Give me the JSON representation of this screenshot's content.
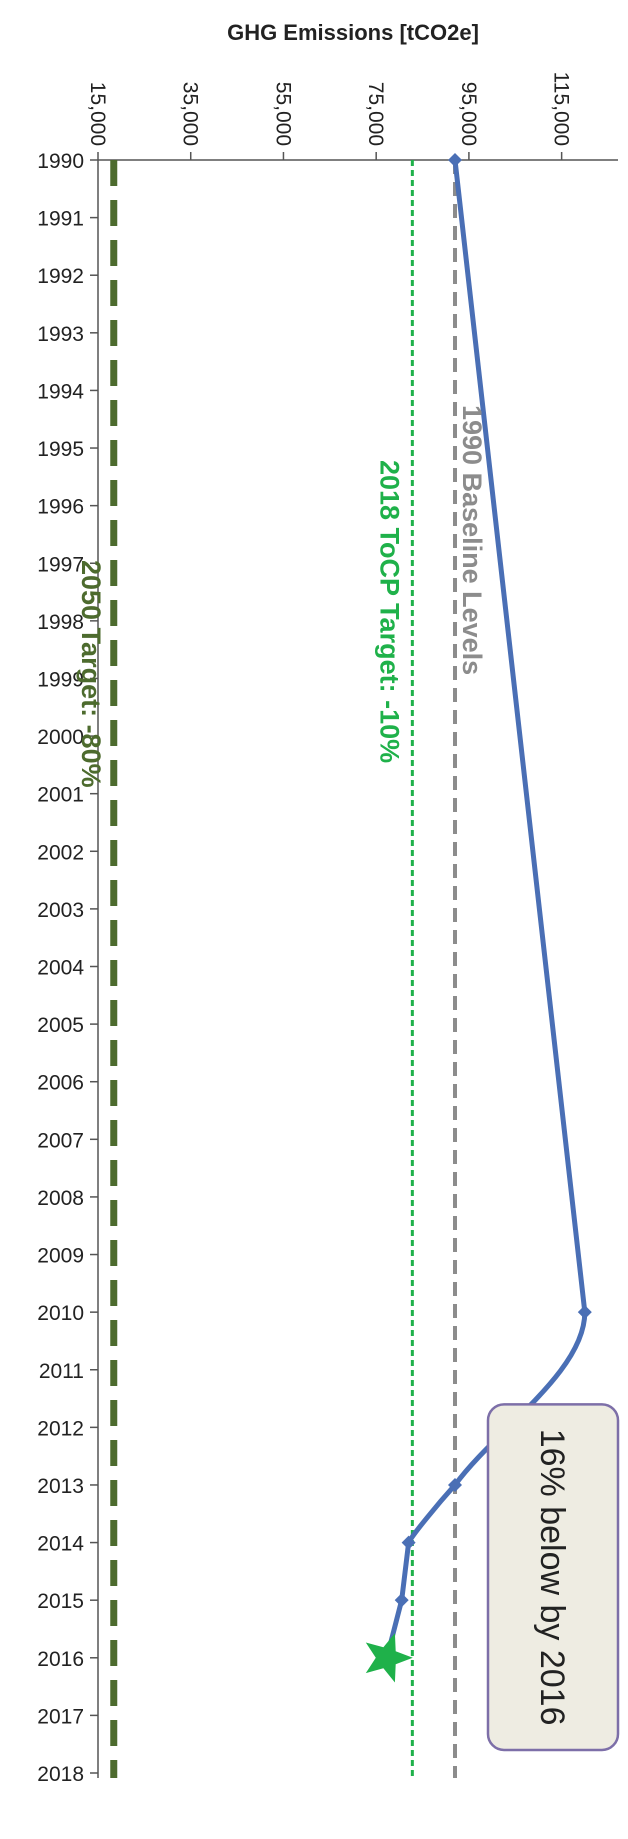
{
  "chart_data": {
    "type": "line",
    "orientation": "rotated 90° clockwise (x axis runs top-to-bottom on the right side)",
    "title": "",
    "xlabel": "",
    "ylabel": "GHG Emissions [tCO2e]",
    "ylim": [
      15000,
      125000
    ],
    "yticks": [
      15000,
      35000,
      55000,
      75000,
      95000,
      115000
    ],
    "ytick_labels": [
      "15,000",
      "35,000",
      "55,000",
      "75,000",
      "95,000",
      "115,000"
    ],
    "xlim": [
      1990,
      2018
    ],
    "categories": [
      "1990",
      "1991",
      "1992",
      "1993",
      "1994",
      "1995",
      "1996",
      "1997",
      "1998",
      "1999",
      "2000",
      "2001",
      "2002",
      "2003",
      "2004",
      "2005",
      "2006",
      "2007",
      "2008",
      "2009",
      "2010",
      "2011",
      "2012",
      "2013",
      "2014",
      "2015",
      "2016",
      "2017",
      "2018"
    ],
    "series": [
      {
        "points": [
          {
            "x": 1990,
            "y": 92000
          },
          {
            "x": 2010,
            "y": 120000
          },
          {
            "x": 2013,
            "y": 92000
          },
          {
            "x": 2014,
            "y": 82000
          },
          {
            "x": 2015,
            "y": 80500
          },
          {
            "x": 2016,
            "y": 77300
          }
        ],
        "color": "#4a6fb5"
      }
    ],
    "reference_lines": [
      {
        "label": "1990 Baseline Levels",
        "y": 92000,
        "color": "#8c8c8c",
        "style": "dashed"
      },
      {
        "label": "2018 ToCP Target: -10%",
        "y": 82800,
        "color": "#1fb14a",
        "style": "dotted"
      },
      {
        "label": "2050 Target: -80%",
        "y": 18400,
        "color": "#4d6b2e",
        "style": "long-dashed"
      }
    ],
    "annotations": [
      {
        "text": "16% below by 2016",
        "x": 2016,
        "y": 77300,
        "marker": "star",
        "marker_color": "#1fb14a"
      }
    ],
    "grid": false,
    "legend": "none"
  }
}
